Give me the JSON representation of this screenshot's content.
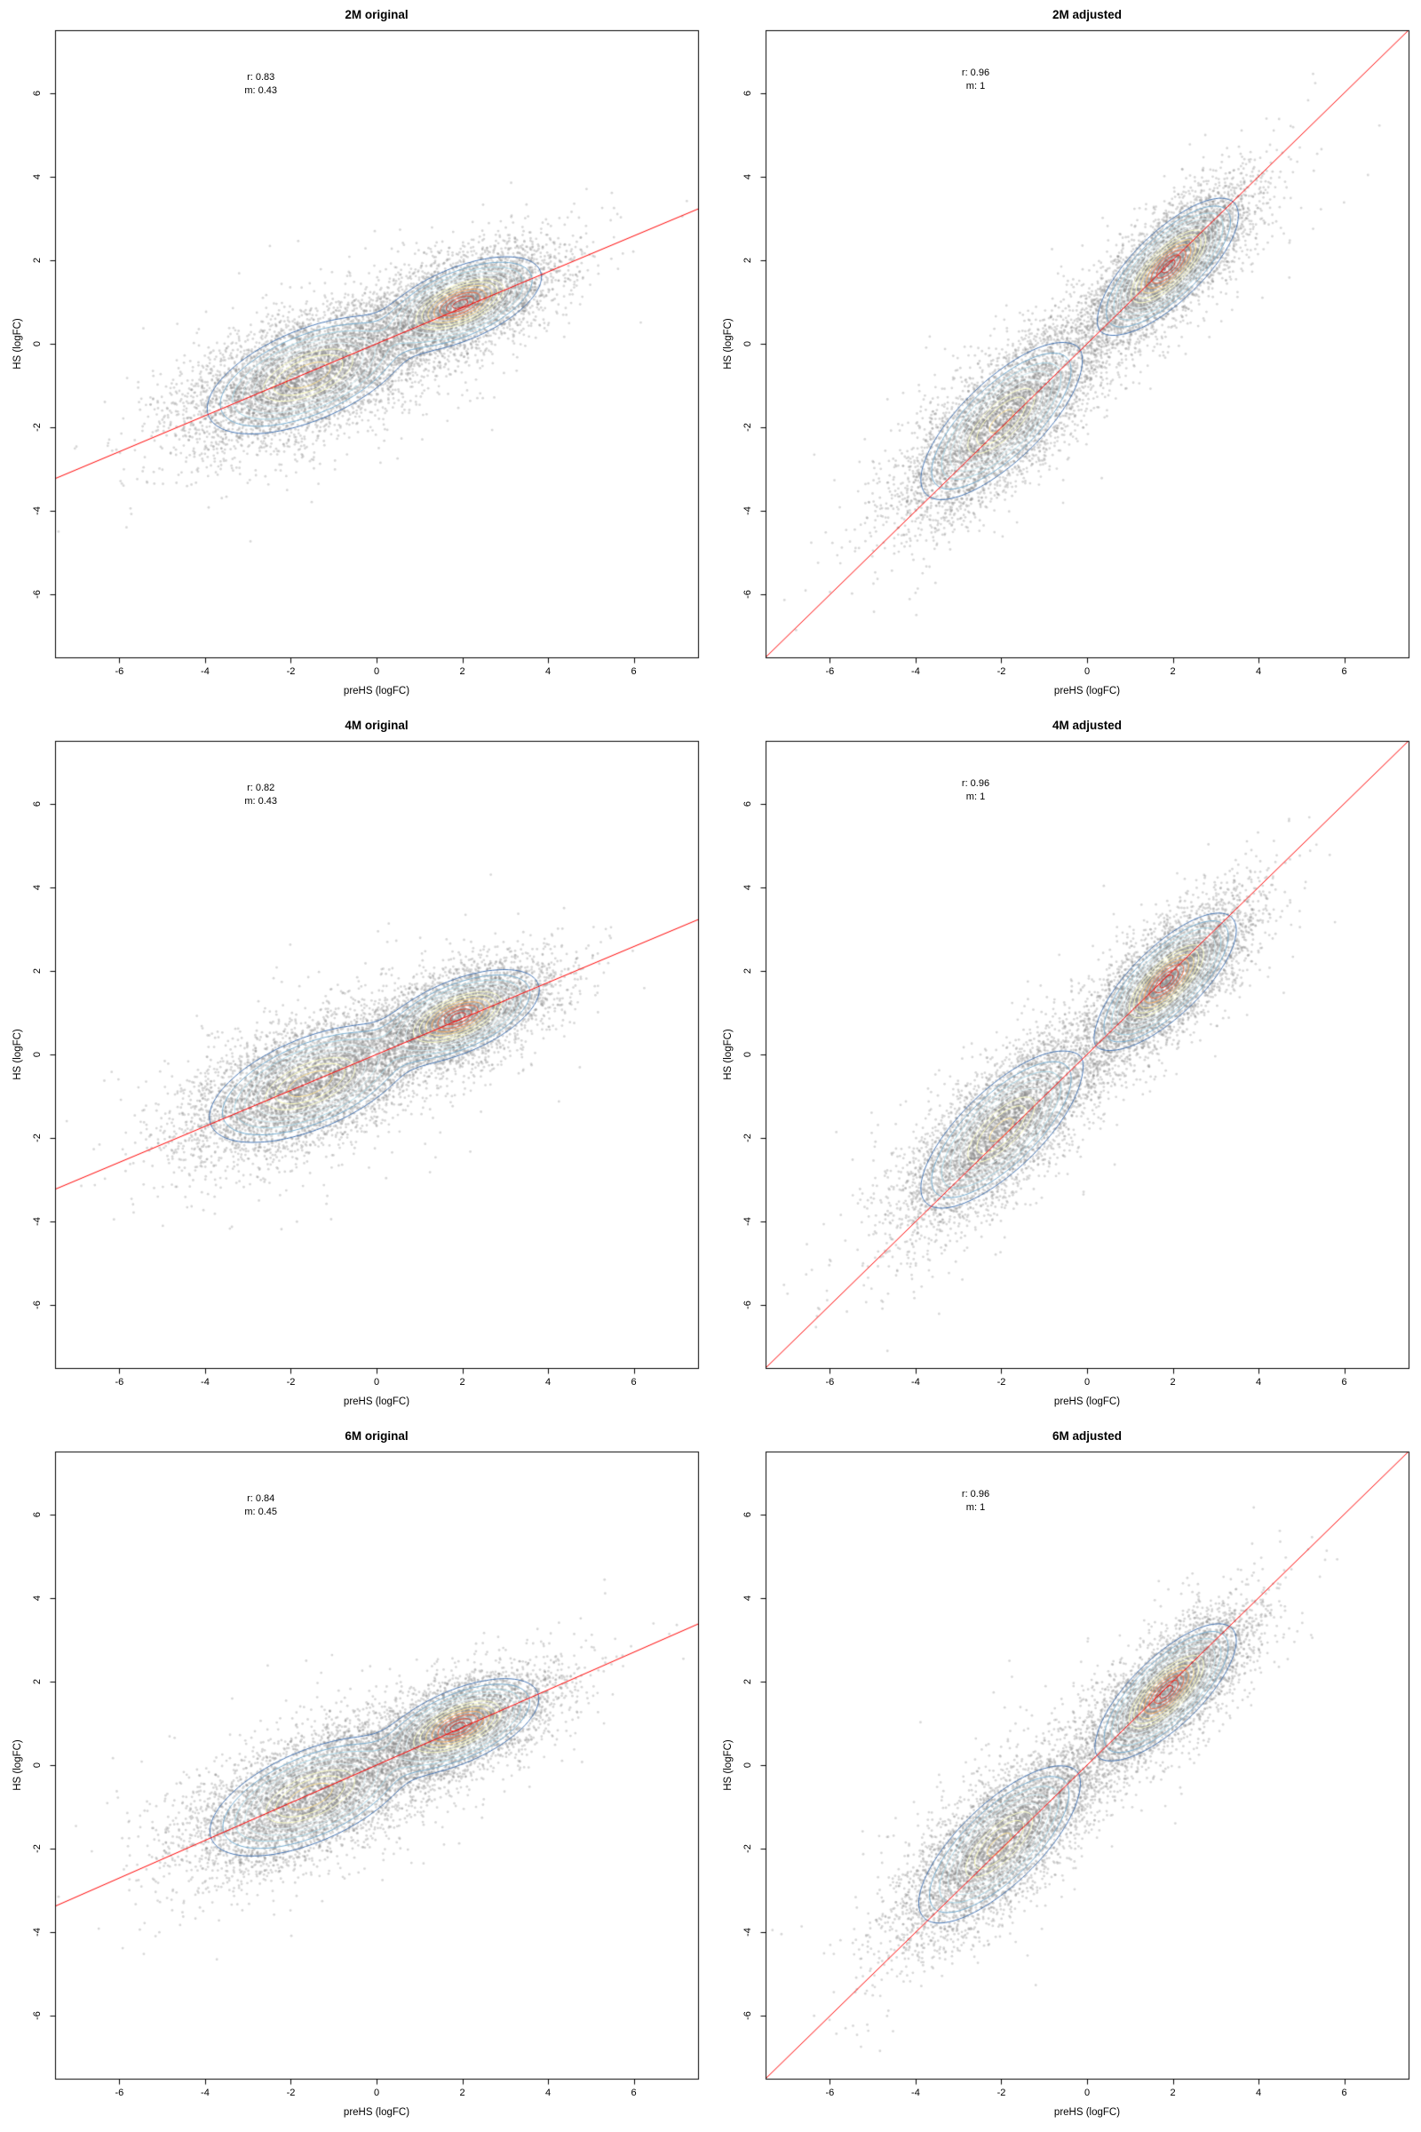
{
  "figure": {
    "background": "#ffffff",
    "rows": 3,
    "cols": 2
  },
  "chart_data": [
    {
      "name": "2m-original",
      "type": "scatter",
      "title": "2M original",
      "xlabel": "preHS (logFC)",
      "ylabel": "HS (logFC)",
      "xlim": [
        -7.5,
        7.5
      ],
      "ylim": [
        -7.5,
        7.5
      ],
      "xticks": [
        -6,
        -4,
        -2,
        0,
        2,
        4,
        6
      ],
      "yticks": [
        -6,
        -4,
        -2,
        0,
        2,
        4,
        6
      ],
      "grid": false,
      "annotation": {
        "r_label": "r: 0.83",
        "m_label": "m: 0.43",
        "x": -2.7,
        "y": 6.2
      },
      "fit_line": {
        "slope": 0.43,
        "intercept": 0,
        "color": "#ff0000"
      },
      "points": {
        "n": 9000,
        "color": "rgba(130,130,130,0.33)",
        "radius": 1.4,
        "seed": 11,
        "spread_mult": 1.5,
        "outlier_mult": 2.4,
        "outlier_frac": 0.07
      },
      "clusters": [
        {
          "cx": -1.6,
          "cy": -0.75,
          "sx": 1.05,
          "sy": 0.45,
          "angle_deg": 23.3,
          "weight": 0.55
        },
        {
          "cx": 1.95,
          "cy": 0.95,
          "sx": 0.8,
          "sy": 0.34,
          "angle_deg": 23.3,
          "weight": 0.45
        }
      ],
      "contours": {
        "levels": [
          0.04,
          0.08,
          0.14,
          0.21,
          0.3,
          0.4,
          0.5,
          0.61,
          0.72,
          0.82,
          0.91,
          0.97
        ],
        "palette": [
          "#4575b4",
          "#74add1",
          "#abd9e9",
          "#cfe9f0",
          "#e0f3f8",
          "#fbfdc7",
          "#ffffbf",
          "#fee090",
          "#fdae61",
          "#f46d43",
          "#e34a33",
          "#d73027"
        ]
      }
    },
    {
      "name": "2m-adjusted",
      "type": "scatter",
      "title": "2M adjusted",
      "xlabel": "preHS (logFC)",
      "ylabel": "HS (logFC)",
      "xlim": [
        -7.5,
        7.5
      ],
      "ylim": [
        -7.5,
        7.5
      ],
      "xticks": [
        -6,
        -4,
        -2,
        0,
        2,
        4,
        6
      ],
      "yticks": [
        -6,
        -4,
        -2,
        0,
        2,
        4,
        6
      ],
      "grid": false,
      "annotation": {
        "r_label": "r: 0.96",
        "m_label": "m: 1",
        "x": -2.6,
        "y": 6.3
      },
      "fit_line": {
        "slope": 1,
        "intercept": 0,
        "color": "#ff0000"
      },
      "points": {
        "n": 9000,
        "color": "rgba(130,130,130,0.33)",
        "radius": 1.4,
        "seed": 22,
        "spread_mult": 1.5,
        "outlier_mult": 2.4,
        "outlier_frac": 0.07
      },
      "clusters": [
        {
          "cx": -2.0,
          "cy": -1.85,
          "sx": 1.05,
          "sy": 0.4,
          "angle_deg": 45,
          "weight": 0.5
        },
        {
          "cx": 1.9,
          "cy": 1.85,
          "sx": 0.85,
          "sy": 0.32,
          "angle_deg": 45,
          "weight": 0.5
        }
      ],
      "contours": {
        "levels": [
          0.04,
          0.08,
          0.14,
          0.21,
          0.3,
          0.4,
          0.5,
          0.61,
          0.72,
          0.82,
          0.91,
          0.97
        ],
        "palette": [
          "#4575b4",
          "#74add1",
          "#abd9e9",
          "#cfe9f0",
          "#e0f3f8",
          "#fbfdc7",
          "#ffffbf",
          "#fee090",
          "#fdae61",
          "#f46d43",
          "#e34a33",
          "#d73027"
        ]
      }
    },
    {
      "name": "4m-original",
      "type": "scatter",
      "title": "4M original",
      "xlabel": "preHS (logFC)",
      "ylabel": "HS (logFC)",
      "xlim": [
        -7.5,
        7.5
      ],
      "ylim": [
        -7.5,
        7.5
      ],
      "xticks": [
        -6,
        -4,
        -2,
        0,
        2,
        4,
        6
      ],
      "yticks": [
        -6,
        -4,
        -2,
        0,
        2,
        4,
        6
      ],
      "grid": false,
      "annotation": {
        "r_label": "r: 0.82",
        "m_label": "m: 0.43",
        "x": -2.7,
        "y": 6.2
      },
      "fit_line": {
        "slope": 0.43,
        "intercept": 0,
        "color": "#ff0000"
      },
      "points": {
        "n": 9000,
        "color": "rgba(130,130,130,0.33)",
        "radius": 1.4,
        "seed": 33,
        "spread_mult": 1.5,
        "outlier_mult": 2.4,
        "outlier_frac": 0.07
      },
      "clusters": [
        {
          "cx": -1.55,
          "cy": -0.7,
          "sx": 1.05,
          "sy": 0.45,
          "angle_deg": 23.3,
          "weight": 0.55
        },
        {
          "cx": 1.9,
          "cy": 0.9,
          "sx": 0.8,
          "sy": 0.34,
          "angle_deg": 23.3,
          "weight": 0.45
        }
      ],
      "contours": {
        "levels": [
          0.04,
          0.08,
          0.14,
          0.21,
          0.3,
          0.4,
          0.5,
          0.61,
          0.72,
          0.82,
          0.91,
          0.97
        ],
        "palette": [
          "#4575b4",
          "#74add1",
          "#abd9e9",
          "#cfe9f0",
          "#e0f3f8",
          "#fbfdc7",
          "#ffffbf",
          "#fee090",
          "#fdae61",
          "#f46d43",
          "#e34a33",
          "#d73027"
        ]
      }
    },
    {
      "name": "4m-adjusted",
      "type": "scatter",
      "title": "4M adjusted",
      "xlabel": "preHS (logFC)",
      "ylabel": "HS (logFC)",
      "xlim": [
        -7.5,
        7.5
      ],
      "ylim": [
        -7.5,
        7.5
      ],
      "xticks": [
        -6,
        -4,
        -2,
        0,
        2,
        4,
        6
      ],
      "yticks": [
        -6,
        -4,
        -2,
        0,
        2,
        4,
        6
      ],
      "grid": false,
      "annotation": {
        "r_label": "r: 0.96",
        "m_label": "m: 1",
        "x": -2.6,
        "y": 6.3
      },
      "fit_line": {
        "slope": 1,
        "intercept": 0,
        "color": "#ff0000"
      },
      "points": {
        "n": 9000,
        "color": "rgba(130,130,130,0.33)",
        "radius": 1.4,
        "seed": 44,
        "spread_mult": 1.5,
        "outlier_mult": 2.4,
        "outlier_frac": 0.07
      },
      "clusters": [
        {
          "cx": -2.0,
          "cy": -1.8,
          "sx": 1.05,
          "sy": 0.4,
          "angle_deg": 45,
          "weight": 0.5
        },
        {
          "cx": 1.85,
          "cy": 1.75,
          "sx": 0.85,
          "sy": 0.32,
          "angle_deg": 45,
          "weight": 0.5
        }
      ],
      "contours": {
        "levels": [
          0.04,
          0.08,
          0.14,
          0.21,
          0.3,
          0.4,
          0.5,
          0.61,
          0.72,
          0.82,
          0.91,
          0.97
        ],
        "palette": [
          "#4575b4",
          "#74add1",
          "#abd9e9",
          "#cfe9f0",
          "#e0f3f8",
          "#fbfdc7",
          "#ffffbf",
          "#fee090",
          "#fdae61",
          "#f46d43",
          "#e34a33",
          "#d73027"
        ]
      }
    },
    {
      "name": "6m-original",
      "type": "scatter",
      "title": "6M original",
      "xlabel": "preHS (logFC)",
      "ylabel": "HS (logFC)",
      "xlim": [
        -7.5,
        7.5
      ],
      "ylim": [
        -7.5,
        7.5
      ],
      "xticks": [
        -6,
        -4,
        -2,
        0,
        2,
        4,
        6
      ],
      "yticks": [
        -6,
        -4,
        -2,
        0,
        2,
        4,
        6
      ],
      "grid": false,
      "annotation": {
        "r_label": "r: 0.84",
        "m_label": "m: 0.45",
        "x": -2.7,
        "y": 6.2
      },
      "fit_line": {
        "slope": 0.45,
        "intercept": 0,
        "color": "#ff0000"
      },
      "points": {
        "n": 9000,
        "color": "rgba(130,130,130,0.33)",
        "radius": 1.4,
        "seed": 55,
        "spread_mult": 1.5,
        "outlier_mult": 2.4,
        "outlier_frac": 0.07
      },
      "clusters": [
        {
          "cx": -1.55,
          "cy": -0.75,
          "sx": 1.05,
          "sy": 0.45,
          "angle_deg": 24.2,
          "weight": 0.55
        },
        {
          "cx": 1.9,
          "cy": 0.92,
          "sx": 0.8,
          "sy": 0.34,
          "angle_deg": 24.2,
          "weight": 0.45
        }
      ],
      "contours": {
        "levels": [
          0.04,
          0.08,
          0.14,
          0.21,
          0.3,
          0.4,
          0.5,
          0.61,
          0.72,
          0.82,
          0.91,
          0.97
        ],
        "palette": [
          "#4575b4",
          "#74add1",
          "#abd9e9",
          "#cfe9f0",
          "#e0f3f8",
          "#fbfdc7",
          "#ffffbf",
          "#fee090",
          "#fdae61",
          "#f46d43",
          "#e34a33",
          "#d73027"
        ]
      }
    },
    {
      "name": "6m-adjusted",
      "type": "scatter",
      "title": "6M adjusted",
      "xlabel": "preHS (logFC)",
      "ylabel": "HS (logFC)",
      "xlim": [
        -7.5,
        7.5
      ],
      "ylim": [
        -7.5,
        7.5
      ],
      "xticks": [
        -6,
        -4,
        -2,
        0,
        2,
        4,
        6
      ],
      "yticks": [
        -6,
        -4,
        -2,
        0,
        2,
        4,
        6
      ],
      "grid": false,
      "annotation": {
        "r_label": "r: 0.96",
        "m_label": "m: 1",
        "x": -2.6,
        "y": 6.3
      },
      "fit_line": {
        "slope": 1,
        "intercept": 0,
        "color": "#ff0000"
      },
      "points": {
        "n": 9000,
        "color": "rgba(130,130,130,0.33)",
        "radius": 1.4,
        "seed": 66,
        "spread_mult": 1.5,
        "outlier_mult": 2.4,
        "outlier_frac": 0.07
      },
      "clusters": [
        {
          "cx": -2.05,
          "cy": -1.9,
          "sx": 1.05,
          "sy": 0.4,
          "angle_deg": 45,
          "weight": 0.5
        },
        {
          "cx": 1.85,
          "cy": 1.75,
          "sx": 0.85,
          "sy": 0.32,
          "angle_deg": 45,
          "weight": 0.5
        }
      ],
      "contours": {
        "levels": [
          0.04,
          0.08,
          0.14,
          0.21,
          0.3,
          0.4,
          0.5,
          0.61,
          0.72,
          0.82,
          0.91,
          0.97
        ],
        "palette": [
          "#4575b4",
          "#74add1",
          "#abd9e9",
          "#cfe9f0",
          "#e0f3f8",
          "#fbfdc7",
          "#ffffbf",
          "#fee090",
          "#fdae61",
          "#f46d43",
          "#e34a33",
          "#d73027"
        ]
      }
    }
  ]
}
